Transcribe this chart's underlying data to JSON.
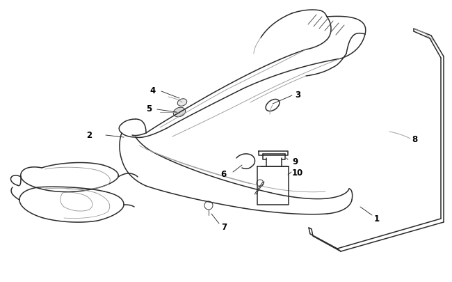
{
  "background_color": "#ffffff",
  "line_color": "#2a2a2a",
  "line_color_light": "#999999",
  "label_color": "#000000",
  "figsize": [
    6.5,
    4.06
  ],
  "dpi": 100,
  "lw_main": 1.1,
  "lw_thin": 0.65,
  "lw_light": 0.55,
  "label_fontsize": 8.5
}
